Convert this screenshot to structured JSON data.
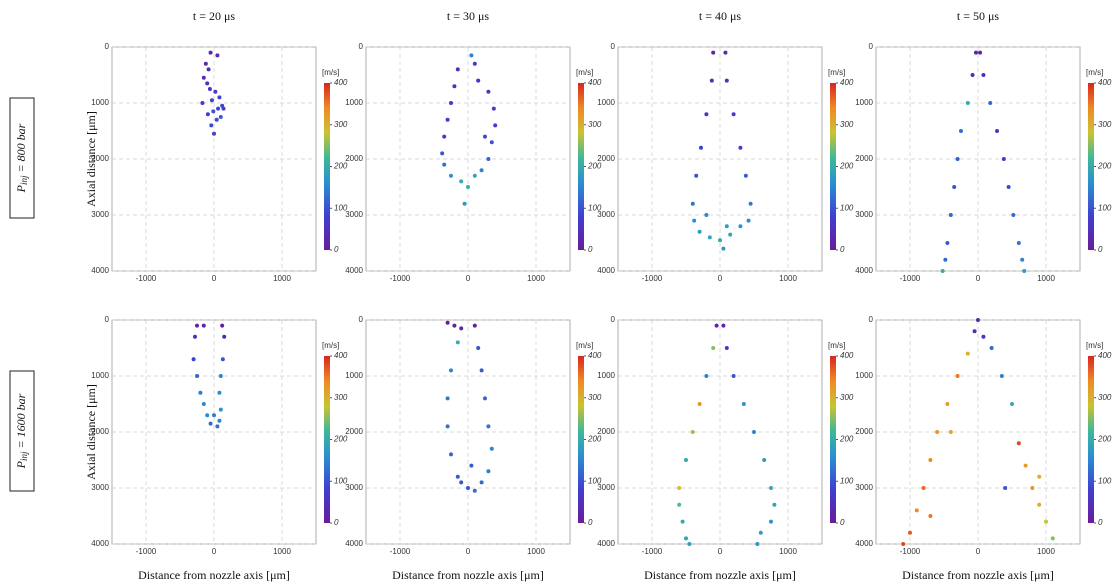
{
  "row_labels": [
    {
      "symbol": "P",
      "subscript": "inj",
      "text": "= 800 bar"
    },
    {
      "symbol": "P",
      "subscript": "inj",
      "text": "= 1600 bar"
    }
  ],
  "chart_data": [
    {
      "type": "scatter",
      "title": "t = 20 μs",
      "ylabel": "Axial distance [μm]",
      "x": [
        -50,
        50,
        -120,
        -80,
        -150,
        -100,
        -60,
        20,
        80,
        -30,
        -170,
        120,
        60,
        -10,
        -90,
        140,
        40,
        -40,
        100,
        0
      ],
      "values": [
        100,
        150,
        300,
        400,
        550,
        650,
        750,
        800,
        900,
        950,
        1000,
        1050,
        1100,
        1150,
        1200,
        1100,
        1300,
        1400,
        1250,
        1550
      ],
      "color_values": [
        20,
        30,
        25,
        35,
        40,
        50,
        60,
        70,
        80,
        75,
        60,
        90,
        85,
        100,
        70,
        80,
        95,
        90,
        110,
        85
      ],
      "xlim": [
        -1500,
        1500
      ],
      "ylim": [
        4000,
        0
      ],
      "xticks": [
        -1000,
        0,
        1000
      ],
      "yticks": [
        0,
        1000,
        2000,
        3000,
        4000
      ],
      "grid": true,
      "colorbar": {
        "label": "[m/s]",
        "lim": [
          0,
          400
        ],
        "ticks": [
          0,
          100,
          200,
          300,
          400
        ]
      }
    },
    {
      "type": "scatter",
      "title": "t = 30 μs",
      "x": [
        50,
        -150,
        -200,
        -250,
        -300,
        -350,
        -380,
        -350,
        -250,
        -100,
        0,
        100,
        200,
        300,
        350,
        400,
        380,
        300,
        150,
        100,
        250,
        -50
      ],
      "values": [
        150,
        400,
        700,
        1000,
        1300,
        1600,
        1900,
        2100,
        2300,
        2400,
        2500,
        2300,
        2200,
        2000,
        1700,
        1400,
        1100,
        800,
        600,
        300,
        1600,
        2800
      ],
      "color_values": [
        150,
        40,
        50,
        60,
        70,
        80,
        100,
        130,
        170,
        200,
        210,
        190,
        150,
        120,
        100,
        80,
        70,
        60,
        50,
        60,
        90,
        170
      ],
      "xlim": [
        -1500,
        1500
      ],
      "ylim": [
        4000,
        0
      ],
      "xticks": [
        -1000,
        0,
        1000
      ],
      "yticks": [
        0,
        1000,
        2000,
        3000,
        4000
      ],
      "grid": true,
      "colorbar": {
        "label": "[m/s]",
        "lim": [
          0,
          400
        ],
        "ticks": [
          0,
          100,
          200,
          300,
          400
        ]
      }
    },
    {
      "type": "scatter",
      "title": "t = 40 μs",
      "x": [
        -100,
        80,
        -120,
        100,
        -200,
        200,
        -280,
        300,
        -350,
        380,
        -400,
        450,
        -380,
        420,
        -300,
        -150,
        0,
        150,
        300,
        -200,
        100,
        50
      ],
      "values": [
        100,
        100,
        600,
        600,
        1200,
        1200,
        1800,
        1800,
        2300,
        2300,
        2800,
        2800,
        3100,
        3100,
        3300,
        3400,
        3450,
        3350,
        3200,
        3000,
        3200,
        3600
      ],
      "color_values": [
        20,
        30,
        40,
        50,
        60,
        70,
        80,
        80,
        100,
        110,
        130,
        140,
        160,
        160,
        180,
        190,
        200,
        190,
        170,
        150,
        180,
        170
      ],
      "xlim": [
        -1500,
        1500
      ],
      "ylim": [
        4000,
        0
      ],
      "xticks": [
        -1000,
        0,
        1000
      ],
      "yticks": [
        0,
        1000,
        2000,
        3000,
        4000
      ],
      "grid": true,
      "colorbar": {
        "label": "[m/s]",
        "lim": [
          0,
          400
        ],
        "ticks": [
          0,
          100,
          200,
          300,
          400
        ]
      }
    },
    {
      "type": "scatter",
      "title": "t = 50 μs",
      "x": [
        -30,
        30,
        -80,
        80,
        -150,
        180,
        -250,
        280,
        -300,
        380,
        -350,
        450,
        -400,
        520,
        -450,
        600,
        -480,
        650,
        -520,
        680
      ],
      "values": [
        100,
        100,
        500,
        500,
        1000,
        1000,
        1500,
        1500,
        2000,
        2000,
        2500,
        2500,
        3000,
        3000,
        3500,
        3500,
        3800,
        3800,
        4000,
        4000
      ],
      "color_values": [
        20,
        20,
        40,
        50,
        200,
        120,
        130,
        60,
        110,
        80,
        100,
        90,
        120,
        120,
        110,
        130,
        120,
        150,
        200,
        180
      ],
      "xlim": [
        -1500,
        1500
      ],
      "ylim": [
        4000,
        0
      ],
      "xticks": [
        -1000,
        0,
        1000
      ],
      "yticks": [
        0,
        1000,
        2000,
        3000,
        4000
      ],
      "grid": true,
      "colorbar": {
        "label": "[m/s]",
        "lim": [
          0,
          400
        ],
        "ticks": [
          0,
          100,
          200,
          300,
          400
        ]
      }
    },
    {
      "type": "scatter",
      "ylabel": "Axial distance [μm]",
      "xlabel": "Distance from nozzle axis [μm]",
      "x": [
        -250,
        -150,
        120,
        -280,
        150,
        -300,
        130,
        -250,
        100,
        -200,
        80,
        -150,
        100,
        -100,
        80,
        0,
        50,
        -50
      ],
      "values": [
        100,
        100,
        100,
        300,
        300,
        700,
        700,
        1000,
        1000,
        1300,
        1300,
        1500,
        1600,
        1700,
        1800,
        1700,
        1900,
        1850
      ],
      "color_values": [
        20,
        20,
        10,
        40,
        30,
        80,
        100,
        120,
        150,
        140,
        160,
        150,
        170,
        160,
        150,
        140,
        130,
        120
      ],
      "xlim": [
        -1500,
        1500
      ],
      "ylim": [
        4000,
        0
      ],
      "xticks": [
        -1000,
        0,
        1000
      ],
      "yticks": [
        0,
        1000,
        2000,
        3000,
        4000
      ],
      "grid": true,
      "colorbar": {
        "label": "[m/s]",
        "lim": [
          0,
          400
        ],
        "ticks": [
          0,
          100,
          200,
          300,
          400
        ]
      }
    },
    {
      "type": "scatter",
      "xlabel": "Distance from nozzle axis [μm]",
      "x": [
        -300,
        -200,
        -100,
        100,
        -150,
        150,
        -250,
        200,
        -300,
        250,
        -300,
        300,
        -250,
        350,
        -150,
        300,
        0,
        200,
        100,
        -100,
        50
      ],
      "values": [
        50,
        100,
        150,
        100,
        400,
        500,
        900,
        900,
        1400,
        1400,
        1900,
        1900,
        2400,
        2300,
        2800,
        2700,
        3000,
        2900,
        3050,
        2900,
        2600
      ],
      "color_values": [
        10,
        20,
        20,
        10,
        200,
        100,
        150,
        110,
        140,
        120,
        130,
        130,
        120,
        150,
        110,
        140,
        100,
        120,
        130,
        100,
        110
      ],
      "xlim": [
        -1500,
        1500
      ],
      "ylim": [
        4000,
        0
      ],
      "xticks": [
        -1000,
        0,
        1000
      ],
      "yticks": [
        0,
        1000,
        2000,
        3000,
        4000
      ],
      "grid": true,
      "colorbar": {
        "label": "[m/s]",
        "lim": [
          0,
          400
        ],
        "ticks": [
          0,
          100,
          200,
          300,
          400
        ]
      }
    },
    {
      "type": "scatter",
      "xlabel": "Distance from nozzle axis [μm]",
      "x": [
        -50,
        50,
        -100,
        100,
        -200,
        200,
        -300,
        350,
        -400,
        500,
        -500,
        650,
        -600,
        750,
        -600,
        800,
        -550,
        750,
        -500,
        600,
        -450,
        550
      ],
      "values": [
        100,
        100,
        500,
        500,
        1000,
        1000,
        1500,
        1500,
        2000,
        2000,
        2500,
        2500,
        3000,
        3000,
        3300,
        3300,
        3600,
        3600,
        3900,
        3800,
        4000,
        4000
      ],
      "color_values": [
        20,
        20,
        250,
        60,
        150,
        100,
        330,
        170,
        260,
        150,
        200,
        180,
        280,
        200,
        230,
        190,
        200,
        170,
        190,
        180,
        180,
        170
      ],
      "xlim": [
        -1500,
        1500
      ],
      "ylim": [
        4000,
        0
      ],
      "xticks": [
        -1000,
        0,
        1000
      ],
      "yticks": [
        0,
        1000,
        2000,
        3000,
        4000
      ],
      "grid": true,
      "colorbar": {
        "label": "[m/s]",
        "lim": [
          0,
          400
        ],
        "ticks": [
          0,
          100,
          200,
          300,
          400
        ]
      }
    },
    {
      "type": "scatter",
      "xlabel": "Distance from nozzle axis [μm]",
      "x": [
        0,
        -50,
        80,
        -150,
        200,
        -300,
        350,
        -450,
        500,
        -600,
        600,
        -700,
        700,
        -800,
        800,
        -900,
        900,
        -1000,
        1000,
        -1100,
        1100,
        -400,
        400,
        -700,
        900
      ],
      "values": [
        0,
        200,
        300,
        600,
        500,
        1000,
        1000,
        1500,
        1500,
        2000,
        2200,
        2500,
        2600,
        3000,
        3000,
        3400,
        3300,
        3800,
        3600,
        4000,
        3900,
        2000,
        3000,
        3500,
        2800
      ],
      "color_values": [
        30,
        40,
        60,
        300,
        120,
        350,
        150,
        320,
        200,
        330,
        380,
        340,
        320,
        360,
        330,
        340,
        300,
        370,
        280,
        380,
        250,
        310,
        100,
        350,
        300
      ],
      "xlim": [
        -1500,
        1500
      ],
      "ylim": [
        4000,
        0
      ],
      "xticks": [
        -1000,
        0,
        1000
      ],
      "yticks": [
        0,
        1000,
        2000,
        3000,
        4000
      ],
      "grid": true,
      "colorbar": {
        "label": "[m/s]",
        "lim": [
          0,
          400
        ],
        "ticks": [
          0,
          100,
          200,
          300,
          400
        ]
      }
    }
  ]
}
